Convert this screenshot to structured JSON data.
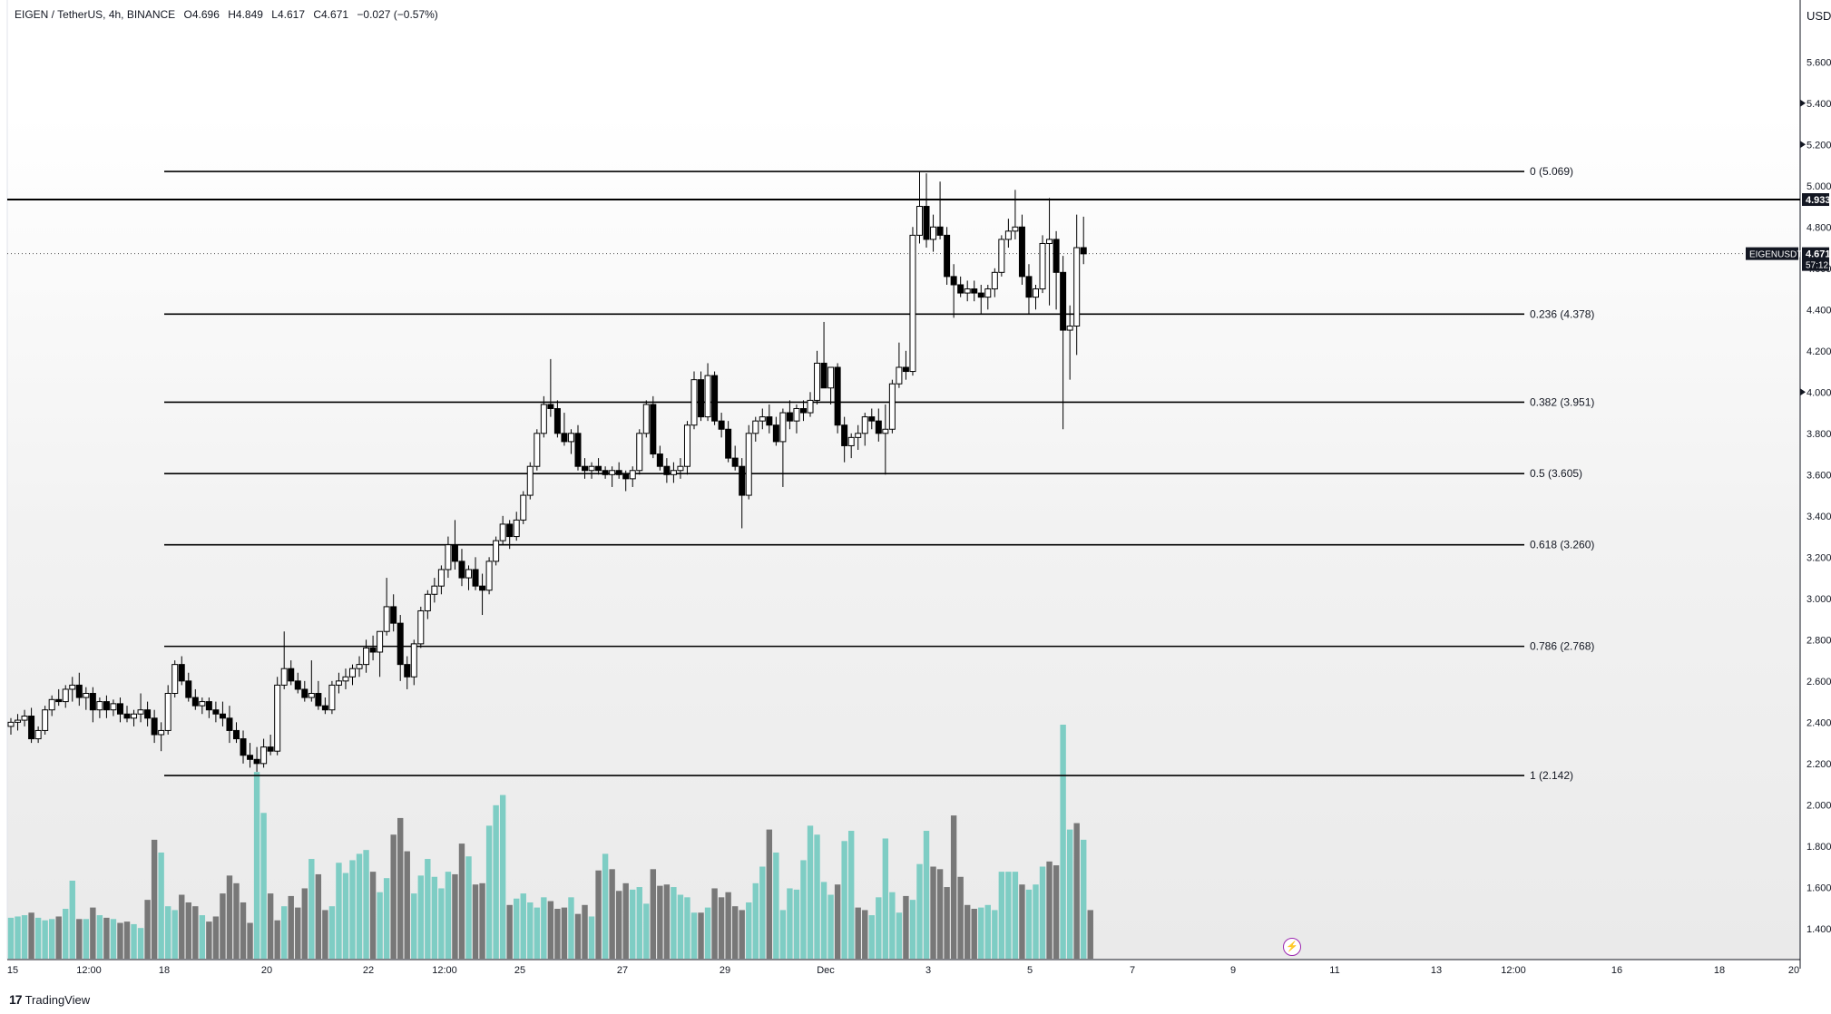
{
  "header": {
    "symbol": "EIGEN / TetherUS, 4h, BINANCE",
    "open": "O4.696",
    "high": "H4.849",
    "low": "L4.617",
    "close": "C4.671",
    "change": "−0.027 (−0.57%)"
  },
  "footer": {
    "brand": "TradingView",
    "logo_mark": "17"
  },
  "scale_icon": "lightning-icon",
  "colors": {
    "line": "#000000",
    "up": "#ffffff",
    "down": "#000000",
    "vol_up": "#7ecdc4",
    "vol_down": "#787878",
    "label_bg": "#131722"
  },
  "chart_data": {
    "type": "candlestick",
    "currency_label": "USD",
    "y_range": [
      1.25,
      5.9
    ],
    "y_ticks": [
      "5.600",
      "5.400",
      "5.200",
      "5.000",
      "4.800",
      "4.600",
      "4.400",
      "4.200",
      "4.000",
      "3.800",
      "3.600",
      "3.400",
      "3.200",
      "3.000",
      "2.800",
      "2.600",
      "2.400",
      "2.200",
      "2.000",
      "1.800",
      "1.600",
      "1.400"
    ],
    "x_ticks": [
      "15",
      "12:00",
      "18",
      "20",
      "22",
      "12:00",
      "25",
      "27",
      "29",
      "Dec",
      "3",
      "5",
      "7",
      "9",
      "11",
      "13",
      "12:00",
      "16",
      "18",
      "20"
    ],
    "fib_levels": [
      {
        "label": "0 (5.069)",
        "value": 5.069
      },
      {
        "label": "0.236 (4.378)",
        "value": 4.378
      },
      {
        "label": "0.382 (3.951)",
        "value": 3.951
      },
      {
        "label": "0.5 (3.605)",
        "value": 3.605
      },
      {
        "label": "0.618 (3.260)",
        "value": 3.26
      },
      {
        "label": "0.786 (2.768)",
        "value": 2.768
      },
      {
        "label": "1 (2.142)",
        "value": 2.142
      }
    ],
    "resistance_line": {
      "value": 4.933,
      "label": "4.933"
    },
    "current_price": {
      "ticker": "EIGENUSDT",
      "value": 4.671,
      "price_label": "4.671",
      "countdown": "57:12"
    },
    "candles_ohlc": [
      [
        2.38,
        2.42,
        2.34,
        2.4
      ],
      [
        2.4,
        2.44,
        2.36,
        2.41
      ],
      [
        2.41,
        2.46,
        2.38,
        2.43
      ],
      [
        2.43,
        2.47,
        2.3,
        2.32
      ],
      [
        2.32,
        2.38,
        2.3,
        2.36
      ],
      [
        2.36,
        2.48,
        2.34,
        2.46
      ],
      [
        2.46,
        2.53,
        2.43,
        2.51
      ],
      [
        2.51,
        2.56,
        2.48,
        2.5
      ],
      [
        2.5,
        2.58,
        2.47,
        2.56
      ],
      [
        2.56,
        2.62,
        2.5,
        2.58
      ],
      [
        2.58,
        2.64,
        2.48,
        2.52
      ],
      [
        2.52,
        2.57,
        2.46,
        2.54
      ],
      [
        2.54,
        2.57,
        2.4,
        2.46
      ],
      [
        2.46,
        2.52,
        2.42,
        2.5
      ],
      [
        2.5,
        2.53,
        2.42,
        2.46
      ],
      [
        2.46,
        2.51,
        2.43,
        2.49
      ],
      [
        2.49,
        2.52,
        2.4,
        2.44
      ],
      [
        2.44,
        2.48,
        2.4,
        2.42
      ],
      [
        2.42,
        2.46,
        2.38,
        2.44
      ],
      [
        2.44,
        2.54,
        2.4,
        2.46
      ],
      [
        2.46,
        2.5,
        2.38,
        2.42
      ],
      [
        2.42,
        2.46,
        2.3,
        2.34
      ],
      [
        2.34,
        2.4,
        2.26,
        2.36
      ],
      [
        2.36,
        2.58,
        2.34,
        2.54
      ],
      [
        2.54,
        2.7,
        2.52,
        2.68
      ],
      [
        2.68,
        2.72,
        2.58,
        2.6
      ],
      [
        2.6,
        2.64,
        2.5,
        2.52
      ],
      [
        2.52,
        2.56,
        2.46,
        2.48
      ],
      [
        2.48,
        2.52,
        2.44,
        2.5
      ],
      [
        2.5,
        2.52,
        2.42,
        2.46
      ],
      [
        2.46,
        2.5,
        2.4,
        2.44
      ],
      [
        2.44,
        2.5,
        2.38,
        2.42
      ],
      [
        2.42,
        2.48,
        2.3,
        2.36
      ],
      [
        2.36,
        2.4,
        2.3,
        2.32
      ],
      [
        2.32,
        2.36,
        2.2,
        2.24
      ],
      [
        2.24,
        2.3,
        2.18,
        2.22
      ],
      [
        2.22,
        2.28,
        2.16,
        2.2
      ],
      [
        2.2,
        2.32,
        2.18,
        2.28
      ],
      [
        2.28,
        2.34,
        2.24,
        2.26
      ],
      [
        2.26,
        2.62,
        2.24,
        2.58
      ],
      [
        2.58,
        2.84,
        2.56,
        2.66
      ],
      [
        2.66,
        2.7,
        2.58,
        2.6
      ],
      [
        2.6,
        2.64,
        2.54,
        2.56
      ],
      [
        2.56,
        2.6,
        2.5,
        2.52
      ],
      [
        2.52,
        2.7,
        2.5,
        2.54
      ],
      [
        2.54,
        2.6,
        2.46,
        2.48
      ],
      [
        2.48,
        2.52,
        2.44,
        2.46
      ],
      [
        2.46,
        2.6,
        2.44,
        2.58
      ],
      [
        2.58,
        2.64,
        2.54,
        2.6
      ],
      [
        2.6,
        2.66,
        2.56,
        2.62
      ],
      [
        2.62,
        2.68,
        2.58,
        2.66
      ],
      [
        2.66,
        2.72,
        2.62,
        2.68
      ],
      [
        2.68,
        2.8,
        2.64,
        2.76
      ],
      [
        2.76,
        2.82,
        2.7,
        2.74
      ],
      [
        2.74,
        2.84,
        2.62,
        2.84
      ],
      [
        2.84,
        3.1,
        2.82,
        2.96
      ],
      [
        2.96,
        3.02,
        2.84,
        2.88
      ],
      [
        2.88,
        2.92,
        2.6,
        2.68
      ],
      [
        2.68,
        2.72,
        2.56,
        2.62
      ],
      [
        2.62,
        2.8,
        2.58,
        2.78
      ],
      [
        2.78,
        2.96,
        2.76,
        2.94
      ],
      [
        2.94,
        3.04,
        2.9,
        3.02
      ],
      [
        3.02,
        3.1,
        2.98,
        3.06
      ],
      [
        3.06,
        3.16,
        3.02,
        3.14
      ],
      [
        3.14,
        3.3,
        3.1,
        3.26
      ],
      [
        3.26,
        3.38,
        3.14,
        3.18
      ],
      [
        3.18,
        3.24,
        3.06,
        3.1
      ],
      [
        3.1,
        3.16,
        3.04,
        3.14
      ],
      [
        3.14,
        3.2,
        3.04,
        3.06
      ],
      [
        3.06,
        3.12,
        2.92,
        3.04
      ],
      [
        3.04,
        3.2,
        3.02,
        3.18
      ],
      [
        3.18,
        3.3,
        3.16,
        3.28
      ],
      [
        3.28,
        3.4,
        3.26,
        3.36
      ],
      [
        3.36,
        3.38,
        3.24,
        3.3
      ],
      [
        3.3,
        3.42,
        3.28,
        3.38
      ],
      [
        3.38,
        3.52,
        3.36,
        3.5
      ],
      [
        3.5,
        3.66,
        3.48,
        3.64
      ],
      [
        3.64,
        3.82,
        3.62,
        3.8
      ],
      [
        3.8,
        3.98,
        3.78,
        3.94
      ],
      [
        3.94,
        4.16,
        3.88,
        3.92
      ],
      [
        3.92,
        3.96,
        3.78,
        3.8
      ],
      [
        3.8,
        3.9,
        3.74,
        3.76
      ],
      [
        3.76,
        3.82,
        3.7,
        3.8
      ],
      [
        3.8,
        3.84,
        3.62,
        3.64
      ],
      [
        3.64,
        3.68,
        3.58,
        3.62
      ],
      [
        3.62,
        3.66,
        3.58,
        3.64
      ],
      [
        3.64,
        3.68,
        3.6,
        3.62
      ],
      [
        3.62,
        3.64,
        3.58,
        3.6
      ],
      [
        3.6,
        3.64,
        3.54,
        3.62
      ],
      [
        3.62,
        3.66,
        3.58,
        3.6
      ],
      [
        3.6,
        3.62,
        3.52,
        3.58
      ],
      [
        3.58,
        3.64,
        3.54,
        3.62
      ],
      [
        3.62,
        3.82,
        3.6,
        3.8
      ],
      [
        3.8,
        3.96,
        3.78,
        3.94
      ],
      [
        3.94,
        3.98,
        3.68,
        3.7
      ],
      [
        3.7,
        3.74,
        3.62,
        3.64
      ],
      [
        3.64,
        3.68,
        3.56,
        3.6
      ],
      [
        3.6,
        3.66,
        3.56,
        3.62
      ],
      [
        3.62,
        3.68,
        3.58,
        3.64
      ],
      [
        3.64,
        3.86,
        3.6,
        3.84
      ],
      [
        3.84,
        4.1,
        3.82,
        4.06
      ],
      [
        4.06,
        4.1,
        3.86,
        3.88
      ],
      [
        3.88,
        4.14,
        3.86,
        4.08
      ],
      [
        4.08,
        4.1,
        3.84,
        3.86
      ],
      [
        3.86,
        3.9,
        3.78,
        3.82
      ],
      [
        3.82,
        3.86,
        3.66,
        3.68
      ],
      [
        3.68,
        3.74,
        3.62,
        3.64
      ],
      [
        3.64,
        3.68,
        3.34,
        3.5
      ],
      [
        3.5,
        3.84,
        3.48,
        3.8
      ],
      [
        3.8,
        3.88,
        3.76,
        3.86
      ],
      [
        3.86,
        3.92,
        3.82,
        3.88
      ],
      [
        3.88,
        3.94,
        3.8,
        3.84
      ],
      [
        3.84,
        3.88,
        3.74,
        3.76
      ],
      [
        3.76,
        3.92,
        3.54,
        3.9
      ],
      [
        3.9,
        3.96,
        3.82,
        3.86
      ],
      [
        3.86,
        3.94,
        3.8,
        3.92
      ],
      [
        3.92,
        3.96,
        3.86,
        3.9
      ],
      [
        3.9,
        4.0,
        3.88,
        3.96
      ],
      [
        3.96,
        4.2,
        3.94,
        4.14
      ],
      [
        4.14,
        4.34,
        4.12,
        4.02
      ],
      [
        4.02,
        4.1,
        3.94,
        4.12
      ],
      [
        4.12,
        4.14,
        3.8,
        3.84
      ],
      [
        3.84,
        3.88,
        3.66,
        3.74
      ],
      [
        3.74,
        3.8,
        3.68,
        3.78
      ],
      [
        3.78,
        3.84,
        3.72,
        3.8
      ],
      [
        3.8,
        3.9,
        3.74,
        3.88
      ],
      [
        3.88,
        3.92,
        3.82,
        3.86
      ],
      [
        3.86,
        3.92,
        3.76,
        3.8
      ],
      [
        3.8,
        3.94,
        3.6,
        3.82
      ],
      [
        3.82,
        4.06,
        3.8,
        4.04
      ],
      [
        4.04,
        4.24,
        4.02,
        4.12
      ],
      [
        4.12,
        4.2,
        4.06,
        4.1
      ],
      [
        4.1,
        4.8,
        4.08,
        4.76
      ],
      [
        4.76,
        5.07,
        4.72,
        4.9
      ],
      [
        4.9,
        5.06,
        4.7,
        4.74
      ],
      [
        4.74,
        4.86,
        4.68,
        4.8
      ],
      [
        4.8,
        5.02,
        4.74,
        4.76
      ],
      [
        4.76,
        4.8,
        4.52,
        4.56
      ],
      [
        4.56,
        4.62,
        4.36,
        4.52
      ],
      [
        4.52,
        4.56,
        4.46,
        4.48
      ],
      [
        4.48,
        4.54,
        4.44,
        4.5
      ],
      [
        4.5,
        4.54,
        4.44,
        4.48
      ],
      [
        4.48,
        4.52,
        4.38,
        4.46
      ],
      [
        4.46,
        4.52,
        4.4,
        4.5
      ],
      [
        4.5,
        4.6,
        4.46,
        4.58
      ],
      [
        4.58,
        4.76,
        4.56,
        4.74
      ],
      [
        4.74,
        4.84,
        4.7,
        4.78
      ],
      [
        4.78,
        4.98,
        4.74,
        4.8
      ],
      [
        4.8,
        4.86,
        4.52,
        4.56
      ],
      [
        4.56,
        4.62,
        4.38,
        4.46
      ],
      [
        4.46,
        4.52,
        4.4,
        4.5
      ],
      [
        4.5,
        4.76,
        4.48,
        4.72
      ],
      [
        4.72,
        4.94,
        4.42,
        4.74
      ],
      [
        4.74,
        4.78,
        4.4,
        4.58
      ],
      [
        4.58,
        4.66,
        3.82,
        4.3
      ],
      [
        4.3,
        4.42,
        4.06,
        4.32
      ],
      [
        4.32,
        4.86,
        4.18,
        4.7
      ],
      [
        4.7,
        4.85,
        4.62,
        4.67
      ]
    ],
    "volumes": [
      32,
      33,
      34,
      36,
      32,
      30,
      31,
      33,
      39,
      61,
      31,
      31,
      40,
      34,
      32,
      31,
      28,
      29,
      27,
      24,
      46,
      93,
      83,
      41,
      38,
      50,
      44,
      41,
      34,
      29,
      33,
      51,
      65,
      59,
      44,
      28,
      146,
      114,
      51,
      30,
      41,
      49,
      40,
      55,
      78,
      66,
      38,
      41,
      75,
      67,
      77,
      82,
      85,
      68,
      52,
      63,
      97,
      110,
      84,
      51,
      65,
      78,
      64,
      55,
      68,
      66,
      90,
      80,
      58,
      59,
      104,
      120,
      128,
      42,
      47,
      51,
      44,
      40,
      48,
      45,
      39,
      40,
      48,
      35,
      42,
      33,
      69,
      82,
      70,
      53,
      59,
      54,
      56,
      43,
      70,
      57,
      58,
      56,
      50,
      48,
      36,
      36,
      40,
      55,
      48,
      52,
      41,
      38,
      44,
      59,
      72,
      101,
      83,
      38,
      55,
      54,
      77,
      104,
      97,
      60,
      50,
      58,
      92,
      100,
      40,
      38,
      34,
      48,
      94,
      52,
      36,
      49,
      46,
      74,
      100,
      72,
      70,
      56,
      112,
      64,
      42,
      39,
      40,
      42,
      38,
      68,
      68,
      68,
      58,
      54,
      58,
      72,
      76,
      73,
      183,
      101,
      106,
      93,
      38
    ],
    "volume_bull": [
      1,
      1,
      1,
      0,
      1,
      1,
      1,
      0,
      1,
      1,
      0,
      1,
      0,
      1,
      0,
      1,
      0,
      0,
      1,
      1,
      0,
      0,
      1,
      1,
      1,
      0,
      0,
      0,
      1,
      0,
      0,
      0,
      0,
      0,
      0,
      0,
      1,
      1,
      0,
      0,
      1,
      0,
      0,
      0,
      1,
      0,
      0,
      1,
      1,
      1,
      1,
      1,
      1,
      0,
      1,
      1,
      0,
      0,
      0,
      1,
      1,
      1,
      1,
      1,
      1,
      0,
      0,
      1,
      0,
      0,
      1,
      1,
      1,
      0,
      1,
      1,
      1,
      1,
      1,
      0,
      0,
      0,
      1,
      0,
      0,
      1,
      0,
      1,
      0,
      0,
      0,
      1,
      1,
      1,
      0,
      0,
      0,
      1,
      1,
      1,
      1,
      0,
      1,
      0,
      0,
      0,
      0,
      0,
      1,
      1,
      1,
      0,
      1,
      1,
      1,
      1,
      1,
      1,
      1,
      1,
      1,
      0,
      1,
      1,
      0,
      0,
      1,
      1,
      1,
      1,
      1,
      0,
      1,
      1,
      1,
      0,
      0,
      0,
      0,
      0,
      0,
      0,
      1,
      1,
      1,
      1,
      1,
      1,
      0,
      1,
      1,
      1,
      0,
      0,
      1,
      1,
      0,
      1,
      0
    ]
  }
}
